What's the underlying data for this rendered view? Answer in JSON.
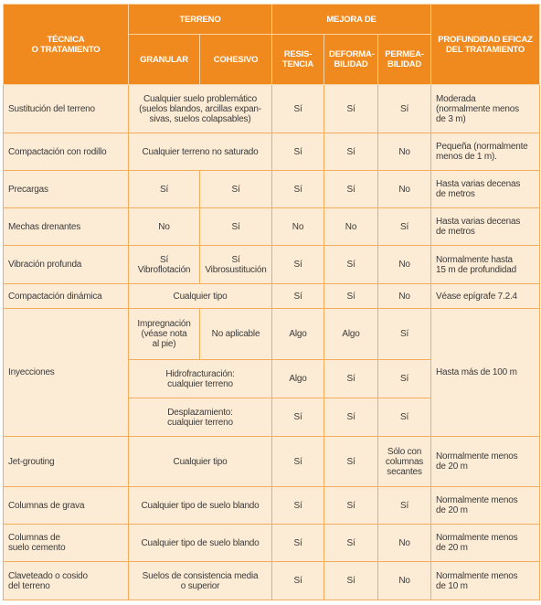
{
  "table": {
    "header": {
      "technique": "TÉCNICA\nO TRATAMIENTO",
      "terrain": "TERRENO",
      "granular": "GRANULAR",
      "cohesive": "COHESIVO",
      "improvement": "MEJORA DE",
      "resistance": "RESIS-\nTENCIA",
      "deformability": "DEFORMA-\nBILIDAD",
      "permeability": "PERMEA-\nBILIDAD",
      "depth": "PROFUNDIDAD EFICAZ\nDEL TRATAMIENTO"
    },
    "rows": [
      [
        "Sustitución del terreno",
        "Cualquier suelo problemático\n(suelos blandos, arcillas expan-\nsivas, suelos colapsables)",
        "Sí",
        "Sí",
        "Sí",
        "Moderada\n(normalmente menos\nde 3 m)"
      ],
      [
        "Compactación con rodillo",
        "Cualquier terreno no saturado",
        "Sí",
        "Sí",
        "No",
        "Pequeña (normalmente\nmenos de 1 m)."
      ],
      [
        "Precargas",
        "Sí",
        "Sí",
        "Sí",
        "Sí",
        "No",
        "Hasta varias decenas\nde metros"
      ],
      [
        "Mechas drenantes",
        "No",
        "Sí",
        "No",
        "No",
        "Sí",
        "Hasta varias decenas\nde metros"
      ],
      [
        "Vibración profunda",
        "Sí\nVibroflotación",
        "Sí\nVibrosustitución",
        "Sí",
        "Sí",
        "No",
        "Normalmente hasta\n15 m de profundidad"
      ],
      [
        "Compactación dinámica",
        "Cualquier tipo",
        "Sí",
        "Sí",
        "No",
        "Véase epígrafe 7.2.4"
      ],
      {
        "technique": "Inyecciones",
        "subrows": [
          [
            "Impregnación\n(véase nota\nal pie)",
            "No aplicable",
            "Algo",
            "Algo",
            "Sí"
          ],
          [
            "Hidrofracturación:\ncualquier terreno",
            "Algo",
            "Sí",
            "Sí"
          ],
          [
            "Desplazamiento:\ncualquier terreno",
            "Sí",
            "Sí",
            "Sí"
          ]
        ],
        "depth": "Hasta más de 100 m"
      },
      [
        "Jet-grouting",
        "Cualquier tipo",
        "Sí",
        "Sí",
        "Sólo con\ncolumnas\nsecantes",
        "Normalmente menos\nde 20 m"
      ],
      [
        "Columnas de grava",
        "Cualquier tipo de suelo blando",
        "Sí",
        "Sí",
        "Sí",
        "Normalmente menos\nde 20 m"
      ],
      [
        "Columnas de\nsuelo cemento",
        "Cualquier tipo de suelo blando",
        "Sí",
        "Sí",
        "No",
        "Normalmente menos\nde 20 m"
      ],
      [
        "Claveteado o cosido\ndel terreno",
        "Suelos de consistencia media\no superior",
        "Sí",
        "Sí",
        "No",
        "Normalmente menos\nde 10 m"
      ]
    ]
  }
}
